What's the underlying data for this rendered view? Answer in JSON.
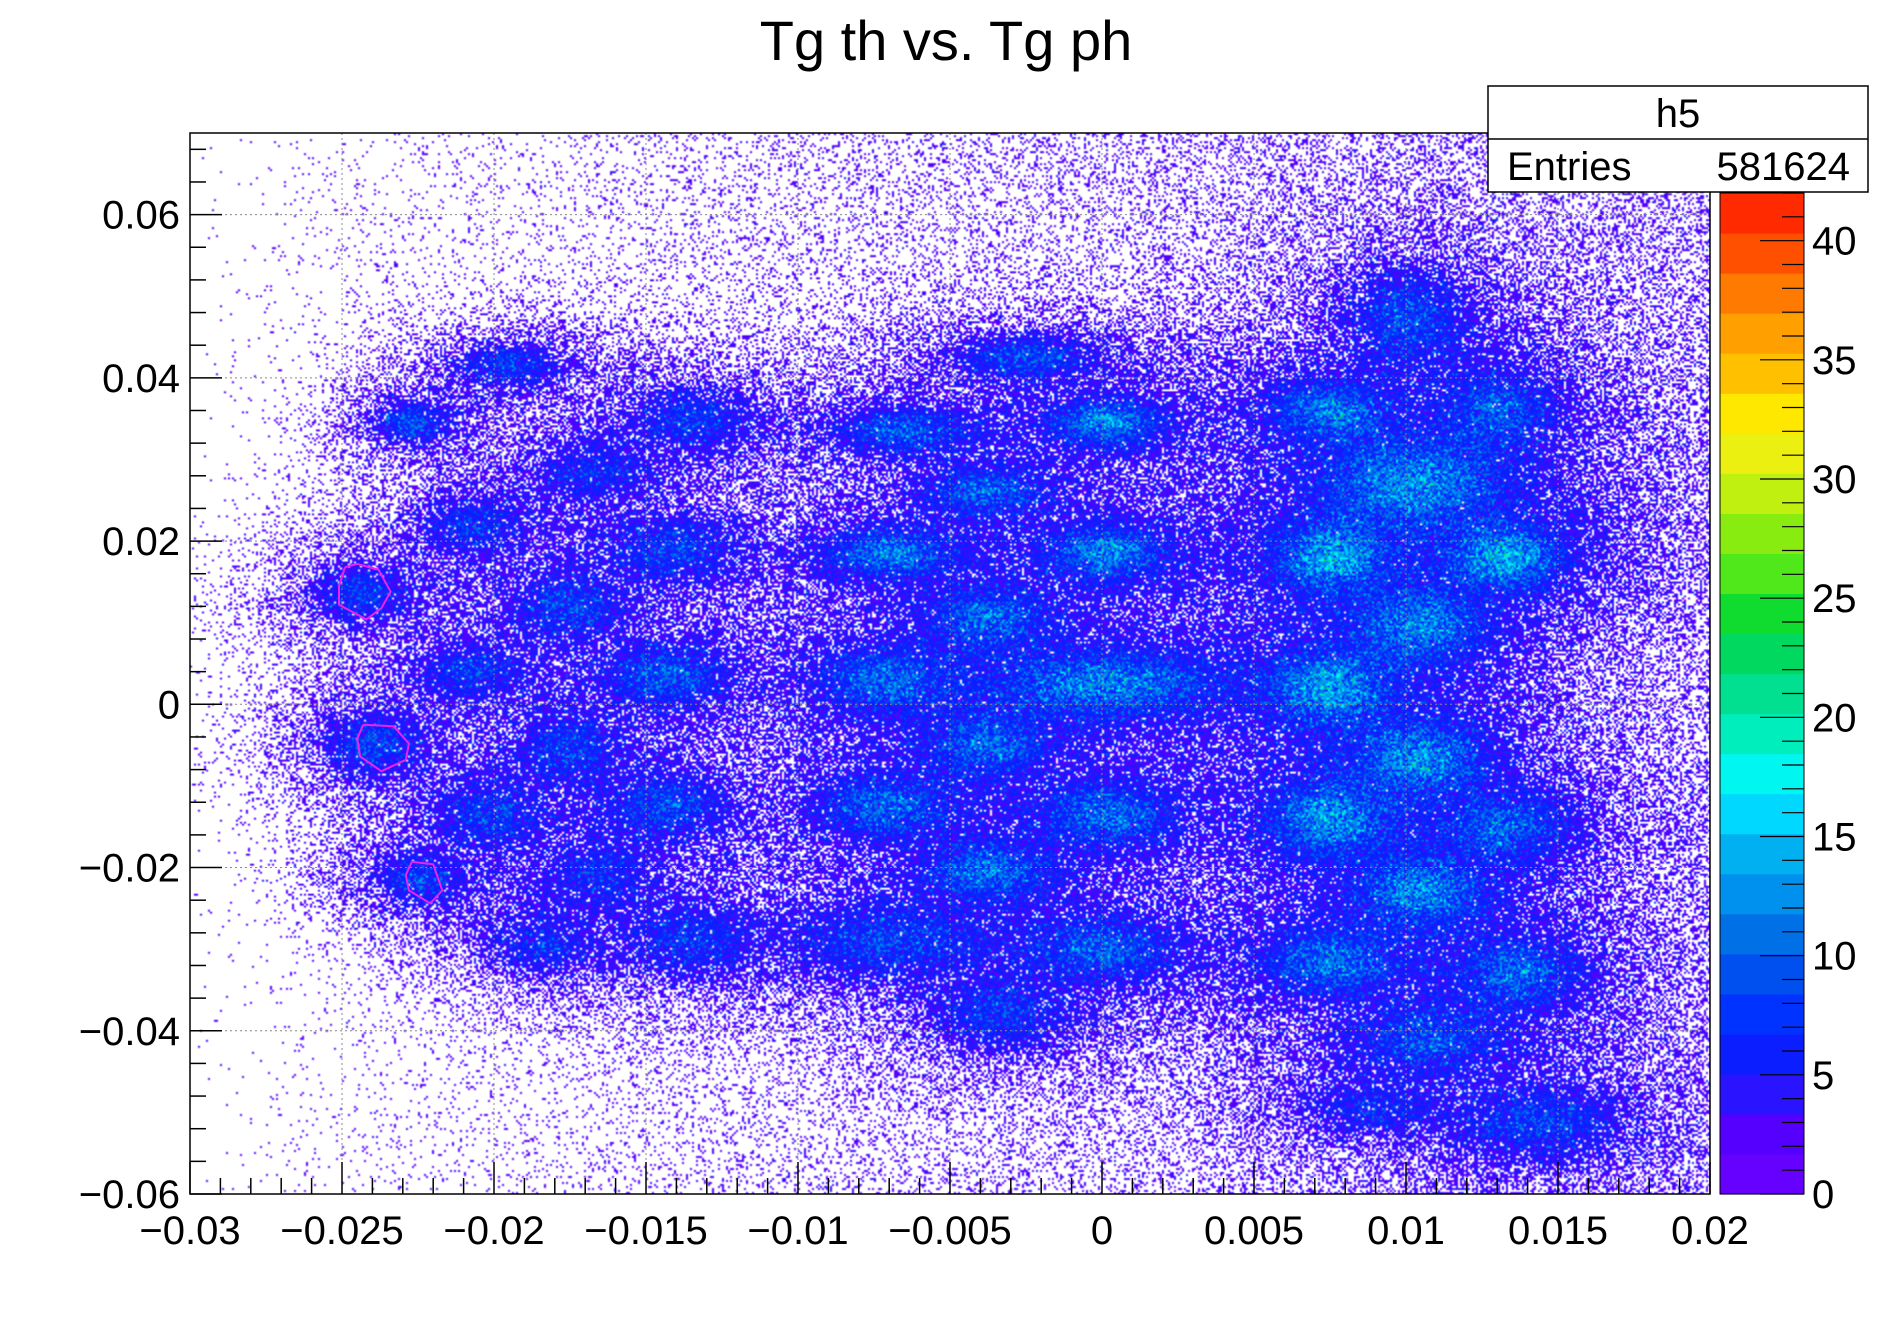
{
  "chart_data": {
    "type": "heatmap",
    "title": "Tg th vs. Tg ph",
    "xlabel": "",
    "ylabel": "",
    "xlim": [
      -0.03,
      0.02
    ],
    "ylim": [
      -0.06,
      0.07
    ],
    "x_ticks": [
      -0.03,
      -0.025,
      -0.02,
      -0.015,
      -0.01,
      -0.005,
      0,
      0.005,
      0.01,
      0.015,
      0.02
    ],
    "x_tick_labels": [
      "−0.03",
      "−0.025",
      "−0.02",
      "−0.015",
      "−0.01",
      "−0.005",
      "0",
      "0.005",
      "0.01",
      "0.015",
      "0.02"
    ],
    "y_ticks": [
      -0.06,
      -0.04,
      -0.02,
      0,
      0.02,
      0.04,
      0.06
    ],
    "y_tick_labels": [
      "−0.06",
      "−0.04",
      "−0.02",
      "0",
      "0.02",
      "0.04",
      "0.06"
    ],
    "grid": true,
    "stats_box": {
      "name": "h5",
      "entries_label": "Entries",
      "entries_value": "581624"
    },
    "colorbar": {
      "range": [
        0,
        42
      ],
      "tick_values": [
        0,
        5,
        10,
        15,
        20,
        25,
        30,
        35,
        40
      ],
      "tick_labels": [
        "0",
        "5",
        "10",
        "15",
        "20",
        "25",
        "30",
        "35",
        "40"
      ],
      "colors": [
        "#6600ff",
        "#5500ff",
        "#2a14ff",
        "#0a1eff",
        "#0033ff",
        "#0050f0",
        "#0070e6",
        "#0090ee",
        "#00b0f0",
        "#00d8ff",
        "#00f6f0",
        "#00eebb",
        "#00e090",
        "#00d860",
        "#10dc30",
        "#50e81a",
        "#88ec10",
        "#c0f010",
        "#ecf010",
        "#ffe800",
        "#ffc000",
        "#ffa000",
        "#ff7a00",
        "#ff5000",
        "#ff2a00"
      ]
    },
    "clusters": [
      {
        "x": -0.0195,
        "y": 0.0415,
        "sx": 0.0009,
        "sy": 0.0015,
        "peak": 3
      },
      {
        "x": -0.0227,
        "y": 0.0345,
        "sx": 0.0006,
        "sy": 0.0013,
        "peak": 2
      },
      {
        "x": -0.0135,
        "y": 0.035,
        "sx": 0.0011,
        "sy": 0.0022,
        "peak": 5
      },
      {
        "x": -0.0065,
        "y": 0.0335,
        "sx": 0.0013,
        "sy": 0.0016,
        "peak": 6
      },
      {
        "x": -0.0025,
        "y": 0.0425,
        "sx": 0.0013,
        "sy": 0.0015,
        "peak": 5
      },
      {
        "x": 0.0002,
        "y": 0.0345,
        "sx": 0.0011,
        "sy": 0.0017,
        "peak": 7
      },
      {
        "x": 0.0075,
        "y": 0.036,
        "sx": 0.0011,
        "sy": 0.0022,
        "peak": 8
      },
      {
        "x": 0.0101,
        "y": 0.0475,
        "sx": 0.0011,
        "sy": 0.0033,
        "peak": 9
      },
      {
        "x": 0.013,
        "y": 0.036,
        "sx": 0.0011,
        "sy": 0.003,
        "peak": 8
      },
      {
        "x": 0.0102,
        "y": 0.027,
        "sx": 0.0019,
        "sy": 0.0035,
        "peak": 24
      },
      {
        "x": -0.0168,
        "y": 0.0285,
        "sx": 0.0011,
        "sy": 0.0022,
        "peak": 4
      },
      {
        "x": -0.0207,
        "y": 0.022,
        "sx": 0.001,
        "sy": 0.0022,
        "peak": 4
      },
      {
        "x": -0.0142,
        "y": 0.019,
        "sx": 0.0012,
        "sy": 0.0023,
        "peak": 6
      },
      {
        "x": -0.007,
        "y": 0.0185,
        "sx": 0.0013,
        "sy": 0.0018,
        "peak": 8
      },
      {
        "x": -0.0038,
        "y": 0.026,
        "sx": 0.0012,
        "sy": 0.0018,
        "peak": 6
      },
      {
        "x": 0.0002,
        "y": 0.0185,
        "sx": 0.0012,
        "sy": 0.0021,
        "peak": 9
      },
      {
        "x": 0.0075,
        "y": 0.018,
        "sx": 0.0011,
        "sy": 0.0026,
        "peak": 12
      },
      {
        "x": 0.0133,
        "y": 0.018,
        "sx": 0.0011,
        "sy": 0.0024,
        "peak": 11
      },
      {
        "x": 0.0105,
        "y": 0.0095,
        "sx": 0.0013,
        "sy": 0.0028,
        "peak": 12
      },
      {
        "x": -0.0244,
        "y": 0.0135,
        "sx": 0.0009,
        "sy": 0.002,
        "peak": 4
      },
      {
        "x": -0.0175,
        "y": 0.012,
        "sx": 0.001,
        "sy": 0.0022,
        "peak": 5
      },
      {
        "x": -0.0038,
        "y": 0.0105,
        "sx": 0.0012,
        "sy": 0.0023,
        "peak": 8
      },
      {
        "x": -0.0208,
        "y": 0.004,
        "sx": 0.001,
        "sy": 0.0021,
        "peak": 4
      },
      {
        "x": -0.0143,
        "y": 0.0035,
        "sx": 0.0011,
        "sy": 0.0022,
        "peak": 7
      },
      {
        "x": -0.0072,
        "y": 0.003,
        "sx": 0.0013,
        "sy": 0.0024,
        "peak": 9
      },
      {
        "x": 0.0002,
        "y": 0.0025,
        "sx": 0.0022,
        "sy": 0.0026,
        "peak": 21
      },
      {
        "x": 0.0075,
        "y": 0.002,
        "sx": 0.0012,
        "sy": 0.0027,
        "peak": 13
      },
      {
        "x": 0.0105,
        "y": -0.0065,
        "sx": 0.0013,
        "sy": 0.0027,
        "peak": 13
      },
      {
        "x": -0.024,
        "y": -0.005,
        "sx": 0.0009,
        "sy": 0.0022,
        "peak": 5
      },
      {
        "x": -0.0175,
        "y": -0.0055,
        "sx": 0.001,
        "sy": 0.0025,
        "peak": 5
      },
      {
        "x": -0.0038,
        "y": -0.005,
        "sx": 0.0012,
        "sy": 0.0024,
        "peak": 8
      },
      {
        "x": -0.0202,
        "y": -0.0135,
        "sx": 0.001,
        "sy": 0.0024,
        "peak": 5
      },
      {
        "x": -0.0143,
        "y": -0.0125,
        "sx": 0.0011,
        "sy": 0.0023,
        "peak": 6
      },
      {
        "x": -0.0072,
        "y": -0.0125,
        "sx": 0.0013,
        "sy": 0.0023,
        "peak": 9
      },
      {
        "x": 0.0002,
        "y": -0.0135,
        "sx": 0.0013,
        "sy": 0.0024,
        "peak": 10
      },
      {
        "x": 0.0075,
        "y": -0.014,
        "sx": 0.0012,
        "sy": 0.0028,
        "peak": 13
      },
      {
        "x": 0.0133,
        "y": -0.015,
        "sx": 0.0012,
        "sy": 0.0025,
        "peak": 8
      },
      {
        "x": -0.0225,
        "y": -0.0215,
        "sx": 0.0008,
        "sy": 0.0017,
        "peak": 3
      },
      {
        "x": -0.0165,
        "y": -0.021,
        "sx": 0.001,
        "sy": 0.0025,
        "peak": 4
      },
      {
        "x": -0.0038,
        "y": -0.0205,
        "sx": 0.0012,
        "sy": 0.0021,
        "peak": 8
      },
      {
        "x": 0.0105,
        "y": -0.023,
        "sx": 0.0013,
        "sy": 0.0027,
        "peak": 12
      },
      {
        "x": -0.0185,
        "y": -0.0295,
        "sx": 0.0009,
        "sy": 0.0019,
        "peak": 3
      },
      {
        "x": -0.0135,
        "y": -0.029,
        "sx": 0.0011,
        "sy": 0.0023,
        "peak": 5
      },
      {
        "x": -0.007,
        "y": -0.029,
        "sx": 0.002,
        "sy": 0.0027,
        "peak": 12
      },
      {
        "x": 0.0,
        "y": -0.03,
        "sx": 0.0014,
        "sy": 0.0023,
        "peak": 9
      },
      {
        "x": 0.0075,
        "y": -0.0315,
        "sx": 0.0013,
        "sy": 0.0025,
        "peak": 10
      },
      {
        "x": 0.0137,
        "y": -0.033,
        "sx": 0.0012,
        "sy": 0.0026,
        "peak": 9
      },
      {
        "x": -0.0033,
        "y": -0.038,
        "sx": 0.0012,
        "sy": 0.0024,
        "peak": 6
      },
      {
        "x": 0.0107,
        "y": -0.041,
        "sx": 0.0015,
        "sy": 0.0026,
        "peak": 9
      },
      {
        "x": 0.009,
        "y": -0.0495,
        "sx": 0.0012,
        "sy": 0.0018,
        "peak": 3
      },
      {
        "x": 0.0145,
        "y": -0.0515,
        "sx": 0.0016,
        "sy": 0.0026,
        "peak": 9
      }
    ],
    "cut_polygons": [
      [
        [
          -0.0249,
          0.0168
        ],
        [
          -0.0245,
          0.0172
        ],
        [
          -0.0238,
          0.0165
        ],
        [
          -0.0234,
          0.0138
        ],
        [
          -0.0237,
          0.0118
        ],
        [
          -0.0242,
          0.0104
        ],
        [
          -0.0251,
          0.0122
        ],
        [
          -0.0251,
          0.0145
        ]
      ],
      [
        [
          -0.0243,
          -0.0025
        ],
        [
          -0.0233,
          -0.0027
        ],
        [
          -0.0228,
          -0.0048
        ],
        [
          -0.0229,
          -0.0068
        ],
        [
          -0.0237,
          -0.0082
        ],
        [
          -0.0244,
          -0.0064
        ],
        [
          -0.0245,
          -0.0042
        ]
      ],
      [
        [
          -0.0227,
          -0.0193
        ],
        [
          -0.022,
          -0.0196
        ],
        [
          -0.0217,
          -0.0228
        ],
        [
          -0.0221,
          -0.0244
        ],
        [
          -0.0228,
          -0.0228
        ],
        [
          -0.0229,
          -0.0209
        ]
      ]
    ],
    "cut_color": "#ee22ee"
  }
}
